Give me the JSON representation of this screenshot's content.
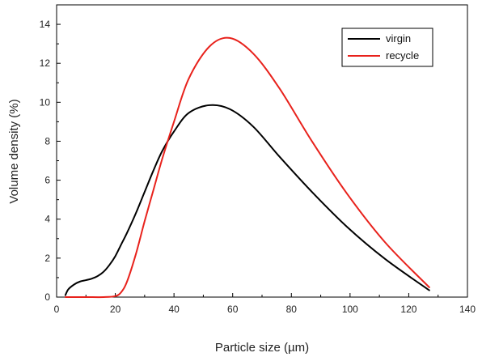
{
  "chart_data": {
    "type": "line",
    "title": "",
    "xlabel": "Particle size (µm)",
    "ylabel": "Volume density (%)",
    "xlim": [
      0,
      140
    ],
    "ylim": [
      0,
      15
    ],
    "x_ticks": [
      0,
      20,
      40,
      60,
      80,
      100,
      120,
      140
    ],
    "y_ticks": [
      0,
      2,
      4,
      6,
      8,
      10,
      12,
      14
    ],
    "grid": false,
    "legend_position": "top-right",
    "series": [
      {
        "name": "virgin",
        "color": "#000000",
        "x": [
          3,
          4,
          6,
          8,
          10,
          12,
          14,
          16,
          18,
          20,
          22,
          24,
          27,
          30,
          33,
          36,
          40,
          45,
          52,
          59,
          67,
          76,
          87,
          99,
          112,
          127
        ],
        "y": [
          0.1,
          0.4,
          0.65,
          0.8,
          0.87,
          0.95,
          1.08,
          1.3,
          1.65,
          2.1,
          2.7,
          3.3,
          4.3,
          5.4,
          6.5,
          7.5,
          8.5,
          9.45,
          9.85,
          9.65,
          8.75,
          7.2,
          5.4,
          3.6,
          1.95,
          0.35
        ]
      },
      {
        "name": "recycle",
        "color": "#e8221c",
        "x": [
          3,
          10,
          16,
          20,
          22,
          24,
          27,
          30,
          33,
          36,
          40,
          45,
          52,
          59,
          67,
          76,
          87,
          99,
          112,
          127
        ],
        "y": [
          0,
          0,
          0,
          0.05,
          0.25,
          0.8,
          2.2,
          3.9,
          5.5,
          7.1,
          9.0,
          11.2,
          12.85,
          13.3,
          12.5,
          10.7,
          8.0,
          5.3,
          2.8,
          0.5
        ]
      }
    ]
  }
}
